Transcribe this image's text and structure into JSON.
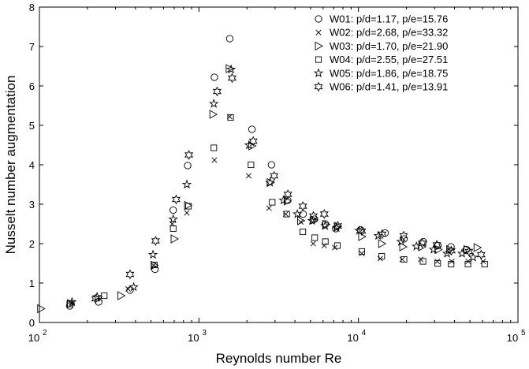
{
  "chart_data": {
    "type": "scatter",
    "xlabel": "Reynolds number Re",
    "ylabel": "Nusselt number augmentation",
    "xscale": "log",
    "xlim": [
      100,
      100000
    ],
    "ylim": [
      0,
      8
    ],
    "grid": false,
    "legend_position": "top-right",
    "x_ticks": [
      {
        "value": 100,
        "base": "10",
        "exp": "2"
      },
      {
        "value": 1000,
        "base": "10",
        "exp": "3"
      },
      {
        "value": 10000,
        "base": "10",
        "exp": "4"
      },
      {
        "value": 100000,
        "base": "10",
        "exp": "5"
      }
    ],
    "y_ticks": [
      "0",
      "1",
      "2",
      "3",
      "4",
      "5",
      "6",
      "7",
      "8"
    ],
    "series": [
      {
        "name": "W01: p/d=1.17, p/e=15.76",
        "marker": "circle",
        "x": [
          155,
          235,
          370,
          530,
          690,
          850,
          1250,
          1560,
          2150,
          2850,
          3600,
          4500,
          5300,
          6200,
          7200,
          10300,
          14700,
          19300,
          25500,
          31500,
          38000,
          47500
        ],
        "y": [
          0.42,
          0.52,
          0.82,
          1.35,
          2.85,
          3.98,
          6.22,
          7.2,
          4.9,
          4.0,
          3.1,
          2.75,
          2.62,
          2.5,
          2.38,
          2.35,
          2.27,
          2.12,
          2.05,
          1.95,
          1.92,
          1.85
        ]
      },
      {
        "name": "W02: p/d=2.68, p/e=33.32",
        "marker": "x",
        "x": [
          160,
          240,
          360,
          520,
          680,
          840,
          1250,
          1560,
          2050,
          2750,
          3500,
          4350,
          5200,
          6100,
          7100,
          10500,
          13700,
          18800,
          24600,
          31200,
          38500,
          48700,
          60500
        ],
        "y": [
          0.5,
          0.6,
          0.85,
          1.45,
          2.5,
          2.78,
          4.12,
          5.22,
          3.72,
          2.9,
          2.75,
          2.55,
          2.0,
          1.95,
          1.9,
          1.75,
          1.62,
          1.6,
          1.6,
          1.55,
          1.55,
          1.55,
          1.55
        ]
      },
      {
        "name": "W03: p/d=1.70, p/e=21.90",
        "marker": "triangle-right",
        "x": [
          102,
          157,
          325,
          525,
          700,
          850,
          1225,
          1550,
          2150,
          2800,
          3580,
          4350,
          5250,
          6250,
          7400,
          10500,
          14000,
          19000,
          25000,
          31600,
          37400,
          48000,
          55500
        ],
        "y": [
          0.35,
          0.48,
          0.68,
          1.45,
          2.12,
          2.97,
          5.28,
          6.44,
          4.48,
          3.55,
          3.08,
          2.58,
          2.6,
          2.49,
          2.44,
          2.18,
          2.0,
          1.92,
          1.92,
          1.85,
          1.85,
          1.85,
          1.9
        ]
      },
      {
        "name": "W04: p/d=2.55, p/e=27.51",
        "marker": "square",
        "x": [
          155,
          255,
          525,
          690,
          860,
          1240,
          1580,
          2120,
          2880,
          3550,
          4480,
          5320,
          6200,
          7380,
          10500,
          14000,
          19300,
          25400,
          31400,
          38100,
          48600,
          61800
        ],
        "y": [
          0.47,
          0.68,
          1.46,
          2.38,
          2.95,
          4.43,
          5.2,
          4.0,
          3.05,
          2.75,
          2.3,
          2.15,
          2.05,
          1.95,
          1.8,
          1.68,
          1.6,
          1.55,
          1.5,
          1.48,
          1.48,
          1.48
        ]
      },
      {
        "name": "W05: p/d=1.86, p/e=18.75",
        "marker": "star5",
        "x": [
          160,
          230,
          390,
          515,
          690,
          840,
          1240,
          1590,
          2060,
          2790,
          3390,
          4140,
          5120,
          6180,
          7290,
          10100,
          13300,
          18500,
          23100,
          29600,
          35900,
          44600,
          52300
        ],
        "y": [
          0.52,
          0.65,
          0.9,
          1.72,
          2.62,
          3.5,
          5.55,
          6.42,
          4.5,
          3.55,
          3.1,
          2.75,
          2.58,
          2.45,
          2.4,
          2.33,
          2.2,
          2.05,
          1.93,
          1.85,
          1.75,
          1.75,
          1.65
        ]
      },
      {
        "name": "W06: p/d=1.41, p/e=13.91",
        "marker": "star6",
        "x": [
          225,
          370,
          535,
          720,
          865,
          1300,
          1615,
          2190,
          2960,
          3610,
          4480,
          5220,
          6100,
          7420,
          10500,
          14100,
          19200,
          25100,
          31000,
          38200,
          49300,
          58800
        ],
        "y": [
          0.6,
          1.22,
          2.07,
          3.12,
          4.25,
          5.86,
          6.2,
          4.6,
          3.72,
          3.25,
          2.95,
          2.7,
          2.75,
          2.45,
          2.32,
          2.24,
          2.2,
          2.01,
          1.97,
          1.82,
          1.8,
          1.72
        ]
      }
    ]
  }
}
